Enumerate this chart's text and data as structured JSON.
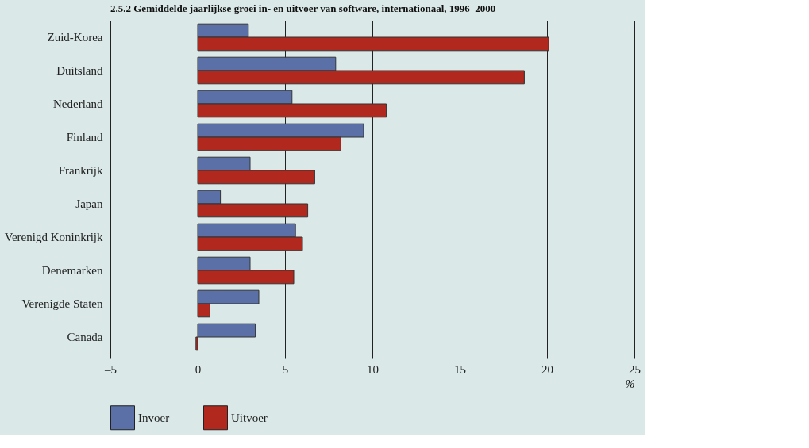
{
  "chart_data": {
    "type": "bar",
    "orientation": "horizontal",
    "title": "2.5.2 Gemiddelde jaarlijkse groei in- en uitvoer van software, internationaal, 1996–2000",
    "xlabel": "%",
    "categories": [
      "Zuid-Korea",
      "Duitsland",
      "Nederland",
      "Finland",
      "Frankrijk",
      "Japan",
      "Verenigd Koninkrijk",
      "Denemarken",
      "Verenigde Staten",
      "Canada"
    ],
    "series": [
      {
        "name": "Invoer",
        "color": "#5a70a6",
        "values": [
          2.9,
          7.9,
          5.4,
          9.5,
          3.0,
          1.3,
          5.6,
          3.0,
          3.5,
          3.3
        ]
      },
      {
        "name": "Uitvoer",
        "color": "#b0281e",
        "values": [
          20.1,
          18.7,
          10.8,
          8.2,
          6.7,
          6.3,
          6.0,
          5.5,
          0.7,
          -0.1
        ]
      }
    ],
    "xlim": [
      -5,
      25
    ],
    "xticks": [
      {
        "value": -5,
        "label": "–5"
      },
      0,
      5,
      10,
      15,
      20,
      25
    ],
    "grid": "x",
    "legend": "bottom left"
  }
}
